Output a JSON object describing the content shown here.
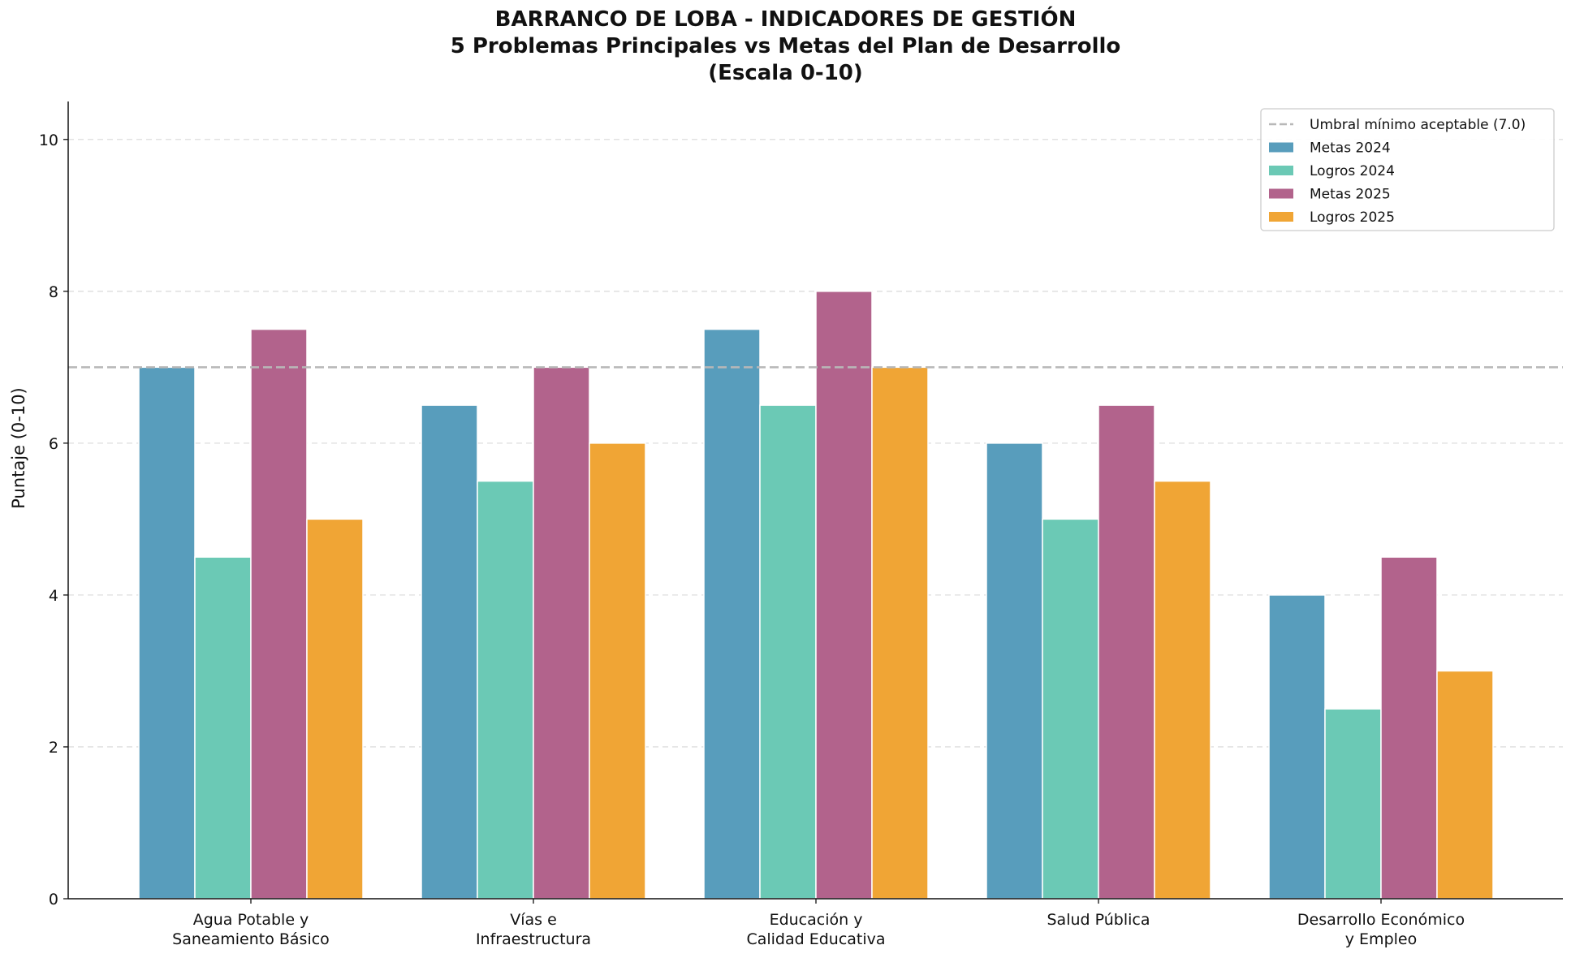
{
  "chart_data": {
    "type": "bar",
    "title_lines": [
      "BARRANCO DE LOBA - INDICADORES DE GESTIÓN",
      "5 Problemas Principales vs Metas del Plan de Desarrollo",
      "(Escala 0-10)"
    ],
    "xlabel": "",
    "ylabel": "Puntaje (0-10)",
    "ylim": [
      0,
      10.5
    ],
    "yticks": [
      0,
      2,
      4,
      6,
      8,
      10
    ],
    "grid": "horizontal dashed",
    "legend_position": "top-right",
    "categories": [
      [
        "Agua Potable y",
        "Saneamiento Básico"
      ],
      [
        "Vías e",
        "Infraestructura"
      ],
      [
        "Educación y",
        "Calidad Educativa"
      ],
      [
        "Salud Pública"
      ],
      [
        "Desarrollo Económico",
        "y Empleo"
      ]
    ],
    "series": [
      {
        "name": "Metas 2024",
        "color": "#589DBC",
        "values": [
          7.0,
          6.5,
          7.5,
          6.0,
          4.0
        ]
      },
      {
        "name": "Logros 2024",
        "color": "#6BC9B5",
        "values": [
          4.5,
          5.5,
          6.5,
          5.0,
          2.5
        ]
      },
      {
        "name": "Metas 2025",
        "color": "#B2638C",
        "values": [
          7.5,
          7.0,
          8.0,
          6.5,
          4.5
        ]
      },
      {
        "name": "Logros 2025",
        "color": "#F0A535",
        "values": [
          5.0,
          6.0,
          7.0,
          5.5,
          3.0
        ]
      }
    ],
    "threshold": {
      "label": "Umbral mínimo aceptable (7.0)",
      "value": 7.0,
      "color": "#B8B8B8"
    }
  }
}
